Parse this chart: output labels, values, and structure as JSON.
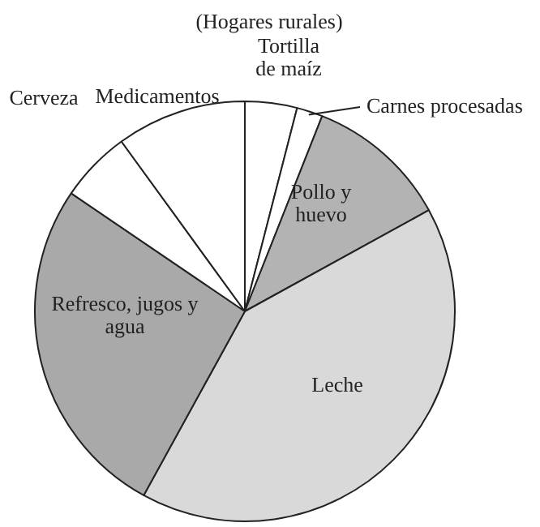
{
  "chart_data": {
    "type": "pie",
    "title": "(Hogares rurales)",
    "categories": [
      "Tortilla de maíz",
      "Carnes procesadas",
      "Pollo y huevo",
      "Leche",
      "Refresco, jugos y agua",
      "Cerveza",
      "Medicamentos"
    ],
    "values": [
      4,
      2,
      11,
      41,
      26.5,
      5.5,
      10
    ],
    "colors": [
      "#ffffff",
      "#ffffff",
      "#b3b3b3",
      "#d9d9d9",
      "#a9a9a9",
      "#ffffff",
      "#ffffff"
    ],
    "legend": false
  }
}
